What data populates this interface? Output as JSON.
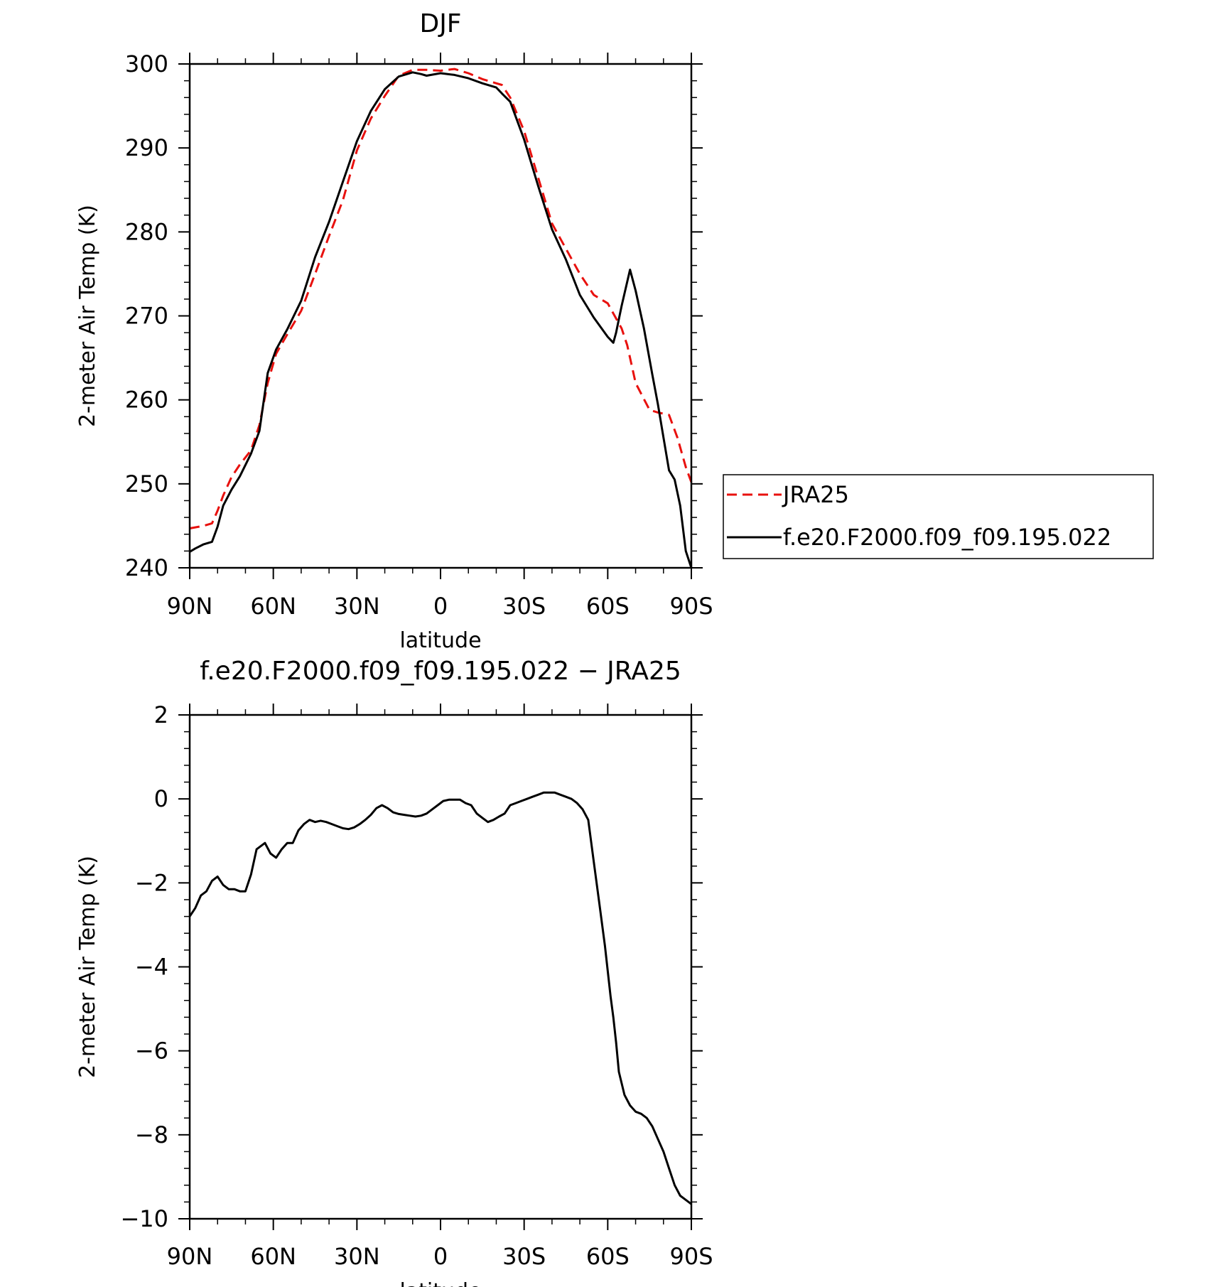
{
  "colors": {
    "obs": "#e8110e",
    "model": "#000000",
    "frame": "#000000",
    "background": "#ffffff"
  },
  "chart_data": [
    {
      "type": "line",
      "title": "DJF",
      "xlabel": "latitude",
      "ylabel": "2-meter Air Temp (K)",
      "x_direction": "north-to-south",
      "xlim": [
        90,
        -90
      ],
      "ylim": [
        240,
        300
      ],
      "x_ticks": [
        90,
        60,
        30,
        0,
        -30,
        -60,
        -90
      ],
      "x_tick_labels": [
        "90N",
        "60N",
        "30N",
        "0",
        "30S",
        "60S",
        "90S"
      ],
      "y_ticks": [
        240,
        250,
        260,
        270,
        280,
        290,
        300
      ],
      "y_tick_labels": [
        "240",
        "250",
        "260",
        "270",
        "280",
        "290",
        "300"
      ],
      "legend_position": "right",
      "series": [
        {
          "name": "JRA25",
          "style": "dashed",
          "color": "#e8110e",
          "x": [
            90,
            85,
            82,
            80,
            78,
            75,
            72,
            68,
            65,
            62,
            59,
            55,
            50,
            45,
            40,
            35,
            30,
            25,
            20,
            15,
            10,
            5,
            0,
            -5,
            -10,
            -15,
            -20,
            -22,
            -25,
            -30,
            -35,
            -40,
            -45,
            -50,
            -55,
            -60,
            -65,
            -67,
            -70,
            -75,
            -78,
            -82,
            -85,
            -88,
            -90
          ],
          "y": [
            244.7,
            245.0,
            245.3,
            246.8,
            248.6,
            250.8,
            252.3,
            254.0,
            257.0,
            262.0,
            265.5,
            267.8,
            270.6,
            275.0,
            279.5,
            283.8,
            289.7,
            293.5,
            296.2,
            298.6,
            299.3,
            299.3,
            299.2,
            299.4,
            298.9,
            298.2,
            297.7,
            297.5,
            296.0,
            292.0,
            286.5,
            281.0,
            278.0,
            275.0,
            272.5,
            271.5,
            268.5,
            266.5,
            262.0,
            258.8,
            258.5,
            258.2,
            255.5,
            252.0,
            250.2
          ]
        },
        {
          "name": "f.e20.F2000.f09_f09.195.022",
          "style": "solid",
          "color": "#000000",
          "x": [
            90,
            88,
            85,
            82,
            80,
            78,
            75,
            72,
            68,
            65,
            62,
            59,
            55,
            50,
            45,
            40,
            35,
            30,
            25,
            20,
            15,
            12,
            10,
            7,
            5,
            0,
            -5,
            -10,
            -15,
            -20,
            -22,
            -25,
            -30,
            -35,
            -40,
            -45,
            -50,
            -55,
            -60,
            -62,
            -63,
            -65,
            -68,
            -70,
            -73,
            -76,
            -78,
            -80,
            -82,
            -84,
            -86,
            -88,
            -90
          ],
          "y": [
            241.9,
            242.3,
            242.8,
            243.1,
            244.9,
            247.4,
            249.3,
            250.9,
            253.6,
            256.3,
            263.2,
            266.0,
            268.4,
            271.8,
            277.0,
            281.2,
            286.0,
            290.8,
            294.4,
            297.0,
            298.5,
            298.8,
            299.0,
            298.8,
            298.6,
            298.9,
            298.7,
            298.3,
            297.7,
            297.2,
            296.5,
            295.5,
            291.0,
            285.5,
            280.3,
            276.7,
            272.5,
            269.8,
            267.5,
            266.8,
            268.0,
            271.2,
            275.5,
            273.0,
            268.5,
            263.0,
            259.5,
            255.5,
            251.6,
            250.5,
            247.4,
            242.0,
            240.0
          ]
        }
      ]
    },
    {
      "type": "line",
      "title": "f.e20.F2000.f09_f09.195.022 − JRA25",
      "xlabel": "latitude",
      "ylabel": "2-meter Air Temp (K)",
      "x_direction": "north-to-south",
      "xlim": [
        90,
        -90
      ],
      "ylim": [
        -10,
        2
      ],
      "x_ticks": [
        90,
        60,
        30,
        0,
        -30,
        -60,
        -90
      ],
      "x_tick_labels": [
        "90N",
        "60N",
        "30N",
        "0",
        "30S",
        "60S",
        "90S"
      ],
      "y_ticks": [
        -10,
        -8,
        -6,
        -4,
        -2,
        0,
        2
      ],
      "y_tick_labels": [
        "−10",
        "−8",
        "−6",
        "−4",
        "−2",
        "0",
        "2"
      ],
      "series": [
        {
          "style": "solid",
          "color": "#000000",
          "x": [
            90,
            88,
            86,
            84,
            82,
            80,
            78,
            76,
            74,
            72,
            70,
            68,
            66,
            63,
            61,
            59,
            57,
            55,
            53,
            51,
            49,
            47,
            45,
            43,
            41,
            39,
            37,
            35,
            33,
            31,
            29,
            27,
            25,
            23,
            21,
            19,
            17,
            15,
            13,
            11,
            9,
            7,
            5,
            3,
            1,
            -1,
            -3,
            -5,
            -7,
            -9,
            -11,
            -13,
            -15,
            -17,
            -19,
            -21,
            -23,
            -25,
            -27,
            -29,
            -31,
            -33,
            -35,
            -37,
            -39,
            -41,
            -43,
            -45,
            -47,
            -49,
            -51,
            -53,
            -55,
            -57,
            -59,
            -61,
            -62,
            -63,
            -64,
            -66,
            -68,
            -70,
            -72,
            -74,
            -76,
            -78,
            -80,
            -82,
            -84,
            -86,
            -88,
            -90
          ],
          "y": [
            -2.8,
            -2.6,
            -2.3,
            -2.2,
            -1.95,
            -1.85,
            -2.05,
            -2.15,
            -2.15,
            -2.2,
            -2.2,
            -1.8,
            -1.2,
            -1.05,
            -1.3,
            -1.4,
            -1.2,
            -1.05,
            -1.05,
            -0.75,
            -0.6,
            -0.5,
            -0.55,
            -0.52,
            -0.55,
            -0.6,
            -0.65,
            -0.7,
            -0.72,
            -0.68,
            -0.6,
            -0.5,
            -0.38,
            -0.22,
            -0.15,
            -0.22,
            -0.32,
            -0.36,
            -0.38,
            -0.4,
            -0.42,
            -0.4,
            -0.35,
            -0.25,
            -0.15,
            -0.05,
            -0.02,
            -0.02,
            -0.02,
            -0.1,
            -0.15,
            -0.35,
            -0.45,
            -0.55,
            -0.5,
            -0.42,
            -0.35,
            -0.15,
            -0.1,
            -0.05,
            0.0,
            0.05,
            0.1,
            0.15,
            0.15,
            0.15,
            0.1,
            0.05,
            0.0,
            -0.1,
            -0.25,
            -0.5,
            -1.5,
            -2.5,
            -3.5,
            -4.7,
            -5.2,
            -5.8,
            -6.5,
            -7.05,
            -7.3,
            -7.45,
            -7.5,
            -7.6,
            -7.8,
            -8.1,
            -8.4,
            -8.8,
            -9.2,
            -9.45,
            -9.55,
            -9.65
          ]
        }
      ]
    }
  ]
}
